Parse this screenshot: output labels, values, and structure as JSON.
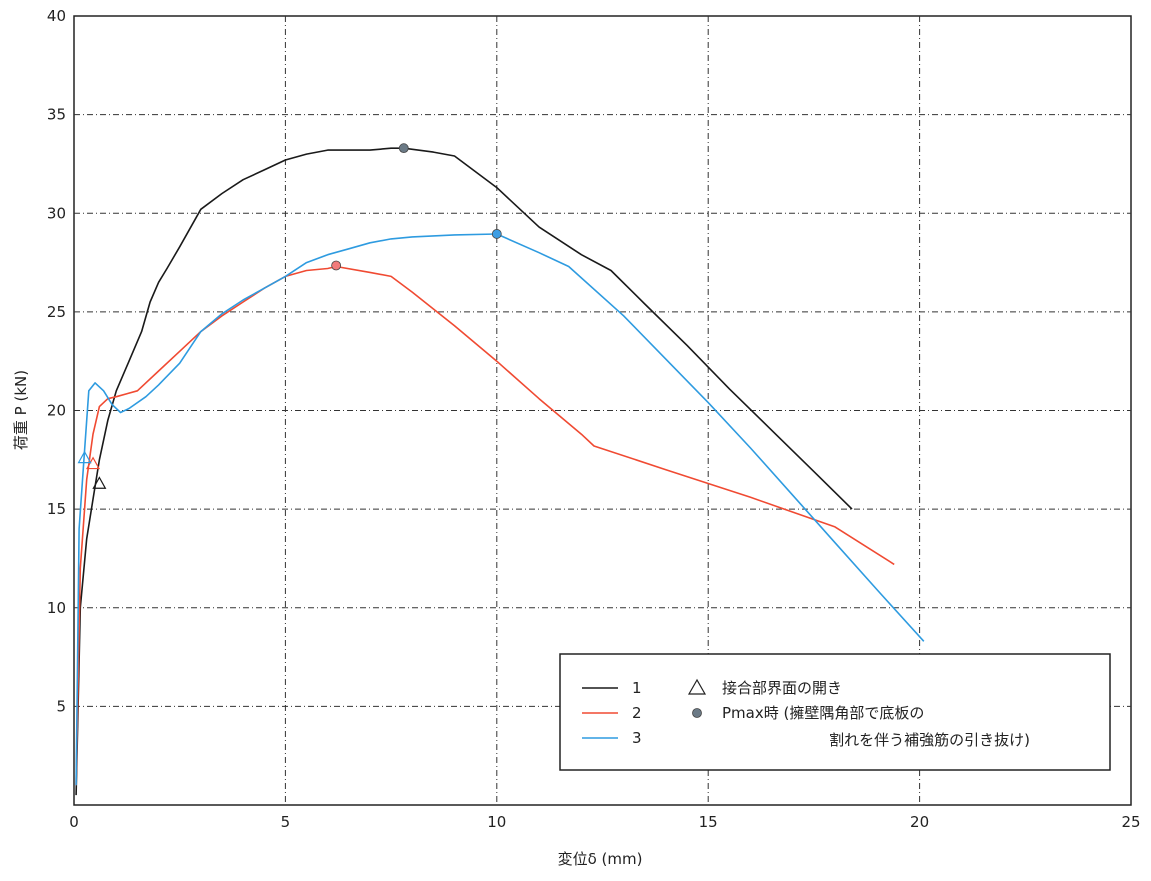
{
  "chart_data": {
    "type": "line",
    "title": "",
    "xlabel": "変位δ (mm)",
    "ylabel": "荷重 P (kN)",
    "xlim": [
      0,
      25
    ],
    "ylim": [
      0,
      40
    ],
    "xticks": [
      0,
      5,
      10,
      15,
      20,
      25
    ],
    "yticks": [
      5,
      10,
      15,
      20,
      25,
      30,
      35,
      40
    ],
    "ytick_labels": [
      "5",
      "10",
      "15",
      "20",
      "25",
      "30",
      "35",
      "40"
    ],
    "xtick_labels": [
      "0",
      "5",
      "10",
      "15",
      "20",
      "25"
    ],
    "grid": true,
    "legend_position": "bottom-right",
    "series": [
      {
        "name": "1",
        "color": "#1a1a1a",
        "x": [
          0.05,
          0.15,
          0.3,
          0.45,
          0.6,
          0.8,
          1.0,
          1.3,
          1.6,
          1.8,
          2.0,
          2.2,
          2.5,
          3.0,
          3.5,
          4.0,
          4.5,
          5.0,
          5.5,
          6.0,
          6.5,
          7.0,
          7.5,
          7.8,
          8.5,
          9.0,
          10.0,
          11.0,
          12.0,
          12.7,
          13.5,
          14.5,
          15.5,
          16.5,
          17.5,
          18.4
        ],
        "y": [
          0.5,
          10.0,
          13.5,
          15.5,
          17.5,
          19.5,
          21.0,
          22.5,
          24.0,
          25.5,
          26.5,
          27.2,
          28.3,
          30.2,
          31.0,
          31.7,
          32.2,
          32.7,
          33.0,
          33.2,
          33.2,
          33.2,
          33.3,
          33.3,
          33.1,
          32.9,
          31.3,
          29.3,
          27.9,
          27.1,
          25.4,
          23.3,
          21.1,
          19.0,
          16.9,
          15.0
        ]
      },
      {
        "name": "2",
        "color": "#f04a32",
        "x": [
          0.05,
          0.15,
          0.3,
          0.45,
          0.6,
          0.8,
          1.0,
          1.5,
          2.0,
          2.5,
          3.0,
          3.5,
          4.0,
          4.5,
          5.0,
          5.5,
          6.0,
          6.2,
          7.0,
          7.5,
          8.0,
          9.0,
          10.0,
          11.0,
          12.0,
          12.3,
          14.0,
          16.0,
          18.0,
          19.4
        ],
        "y": [
          1.0,
          12.0,
          16.5,
          18.8,
          20.2,
          20.6,
          20.7,
          21.0,
          22.0,
          23.0,
          24.0,
          24.8,
          25.5,
          26.2,
          26.8,
          27.1,
          27.2,
          27.3,
          27.0,
          26.8,
          26.0,
          24.3,
          22.5,
          20.6,
          18.8,
          18.2,
          17.0,
          15.6,
          14.1,
          12.2
        ]
      },
      {
        "name": "3",
        "color": "#2e9be0",
        "x": [
          0.05,
          0.12,
          0.25,
          0.35,
          0.5,
          0.7,
          0.9,
          1.1,
          1.3,
          1.7,
          2.0,
          2.5,
          3.0,
          3.5,
          4.0,
          4.5,
          5.0,
          5.5,
          6.0,
          6.5,
          7.0,
          7.5,
          8.0,
          9.0,
          10.0,
          11.0,
          11.7,
          13.0,
          14.0,
          15.0,
          16.0,
          17.0,
          18.0,
          19.0,
          20.1
        ],
        "y": [
          1.0,
          14.0,
          18.0,
          21.0,
          21.4,
          21.0,
          20.3,
          19.9,
          20.1,
          20.7,
          21.3,
          22.4,
          24.0,
          24.9,
          25.6,
          26.2,
          26.8,
          27.5,
          27.9,
          28.2,
          28.5,
          28.7,
          28.8,
          28.9,
          28.95,
          28.0,
          27.3,
          24.8,
          22.6,
          20.4,
          18.1,
          15.7,
          13.3,
          10.9,
          8.3
        ]
      }
    ],
    "markers": [
      {
        "kind": "triangle",
        "series": "1",
        "x": 0.6,
        "y": 16.3,
        "color": "#1a1a1a"
      },
      {
        "kind": "triangle",
        "series": "2",
        "x": 0.45,
        "y": 17.3,
        "color": "#f04a32"
      },
      {
        "kind": "triangle",
        "series": "3",
        "x": 0.25,
        "y": 17.6,
        "color": "#2e9be0"
      },
      {
        "kind": "circle",
        "series": "1",
        "x": 7.8,
        "y": 33.3,
        "color": "#6b7a86"
      },
      {
        "kind": "circle",
        "series": "2",
        "x": 6.2,
        "y": 27.35,
        "color": "#f27b7b"
      },
      {
        "kind": "circle",
        "series": "3",
        "x": 10.0,
        "y": 28.95,
        "color": "#3c9de3"
      }
    ],
    "legend": {
      "entries": [
        {
          "label": "1",
          "color": "#1a1a1a"
        },
        {
          "label": "2",
          "color": "#f04a32"
        },
        {
          "label": "3",
          "color": "#2e9be0"
        }
      ],
      "marker_notes": [
        {
          "symbol": "triangle",
          "text": "接合部界面の開き"
        },
        {
          "symbol": "circle",
          "text": "Pmax時 (擁壁隅角部で底板の"
        },
        {
          "symbol": "",
          "text": "割れを伴う補強筋の引き抜け)"
        }
      ]
    }
  }
}
